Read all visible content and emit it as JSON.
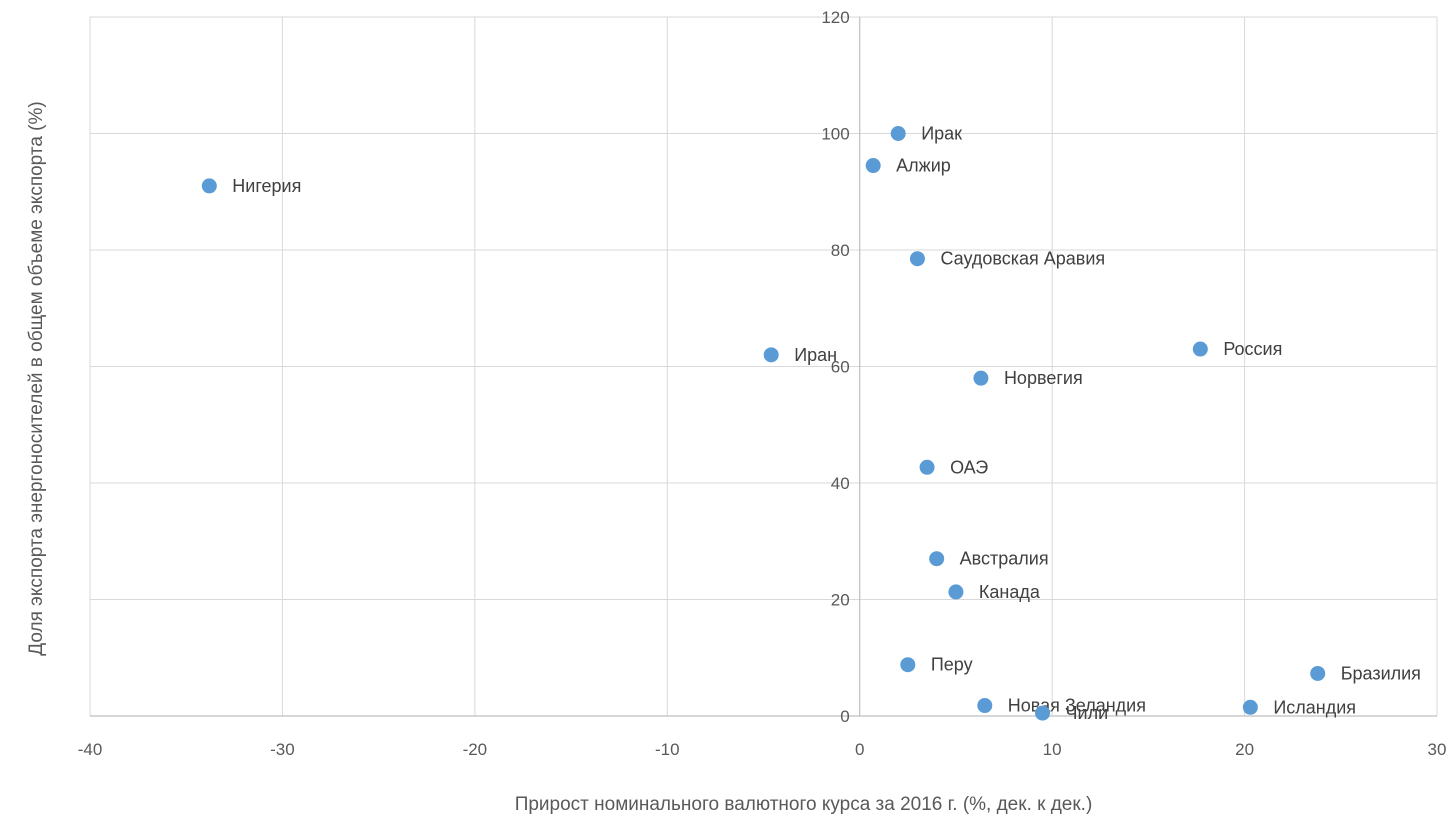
{
  "chart_data": {
    "type": "scatter",
    "xlabel": "Прирост номинального валютного курса за 2016 г. (%, дек. к дек.)",
    "ylabel": "Доля экспорта энергоносителей в общем объеме экспорта (%)",
    "xlim": [
      -40,
      30
    ],
    "ylim": [
      0,
      120
    ],
    "xticks": [
      -40,
      -30,
      -20,
      -10,
      0,
      10,
      20,
      30
    ],
    "yticks": [
      0,
      20,
      40,
      60,
      80,
      100,
      120
    ],
    "grid": true,
    "colors": {
      "point": "#5b9bd5",
      "grid": "#d9d9d9",
      "axis": "#bfbfbf"
    },
    "points": [
      {
        "label": "Нигерия",
        "x": -33.8,
        "y": 91
      },
      {
        "label": "Ирак",
        "x": 2.0,
        "y": 100
      },
      {
        "label": "Алжир",
        "x": 0.7,
        "y": 94.5
      },
      {
        "label": "Саудовская Аравия",
        "x": 3.0,
        "y": 78.5
      },
      {
        "label": "Иран",
        "x": -4.6,
        "y": 62
      },
      {
        "label": "Россия",
        "x": 17.7,
        "y": 63
      },
      {
        "label": "Норвегия",
        "x": 6.3,
        "y": 58
      },
      {
        "label": "ОАЭ",
        "x": 3.5,
        "y": 42.7
      },
      {
        "label": "Австралия",
        "x": 4.0,
        "y": 27
      },
      {
        "label": "Канада",
        "x": 5.0,
        "y": 21.3
      },
      {
        "label": "Перу",
        "x": 2.5,
        "y": 8.8
      },
      {
        "label": "Бразилия",
        "x": 23.8,
        "y": 7.3
      },
      {
        "label": "Новая Зеландия",
        "x": 6.5,
        "y": 1.8
      },
      {
        "label": "Чили",
        "x": 9.5,
        "y": 0.5
      },
      {
        "label": "Исландия",
        "x": 20.3,
        "y": 1.5
      }
    ]
  }
}
